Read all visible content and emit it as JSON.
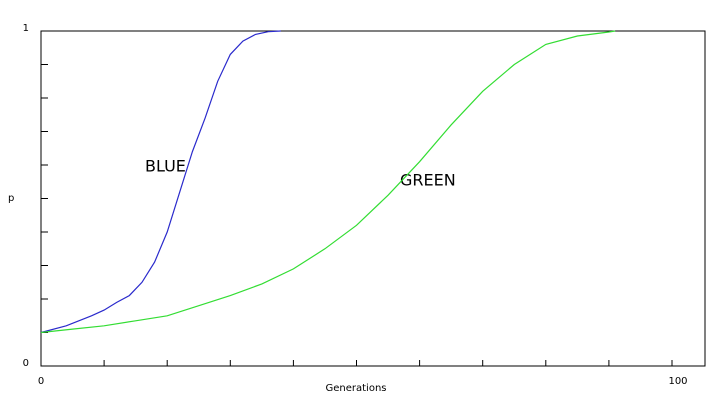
{
  "chart_data": {
    "type": "line",
    "x_label": "Generations",
    "y_label": "p",
    "xlim": [
      0,
      100
    ],
    "ylim": [
      0,
      1
    ],
    "xticks": [
      0,
      100
    ],
    "yticks": [
      0,
      1
    ],
    "x_minor_ticks": [
      10,
      20,
      30,
      40,
      50,
      60,
      70,
      80,
      90
    ],
    "y_minor_ticks": [
      0.1,
      0.2,
      0.3,
      0.4,
      0.5,
      0.6,
      0.7,
      0.8,
      0.9
    ],
    "series": [
      {
        "name": "BLUE",
        "color": "#2a2acc",
        "x": [
          0,
          4,
          8,
          10,
          12,
          14,
          16,
          18,
          20,
          22,
          24,
          26,
          28,
          30,
          32,
          34,
          36,
          38
        ],
        "values": [
          0.1,
          0.12,
          0.15,
          0.167,
          0.19,
          0.21,
          0.25,
          0.31,
          0.4,
          0.52,
          0.64,
          0.74,
          0.85,
          0.93,
          0.97,
          0.99,
          0.998,
          1
        ]
      },
      {
        "name": "GREEN",
        "color": "#33dd33",
        "x": [
          0,
          5,
          10,
          15,
          20,
          25,
          30,
          35,
          40,
          45,
          50,
          55,
          60,
          65,
          70,
          75,
          80,
          85,
          90,
          91
        ],
        "values": [
          0.1,
          0.11,
          0.12,
          0.135,
          0.15,
          0.18,
          0.21,
          0.245,
          0.29,
          0.35,
          0.42,
          0.51,
          0.61,
          0.72,
          0.82,
          0.9,
          0.96,
          0.985,
          0.997,
          1
        ]
      }
    ]
  }
}
